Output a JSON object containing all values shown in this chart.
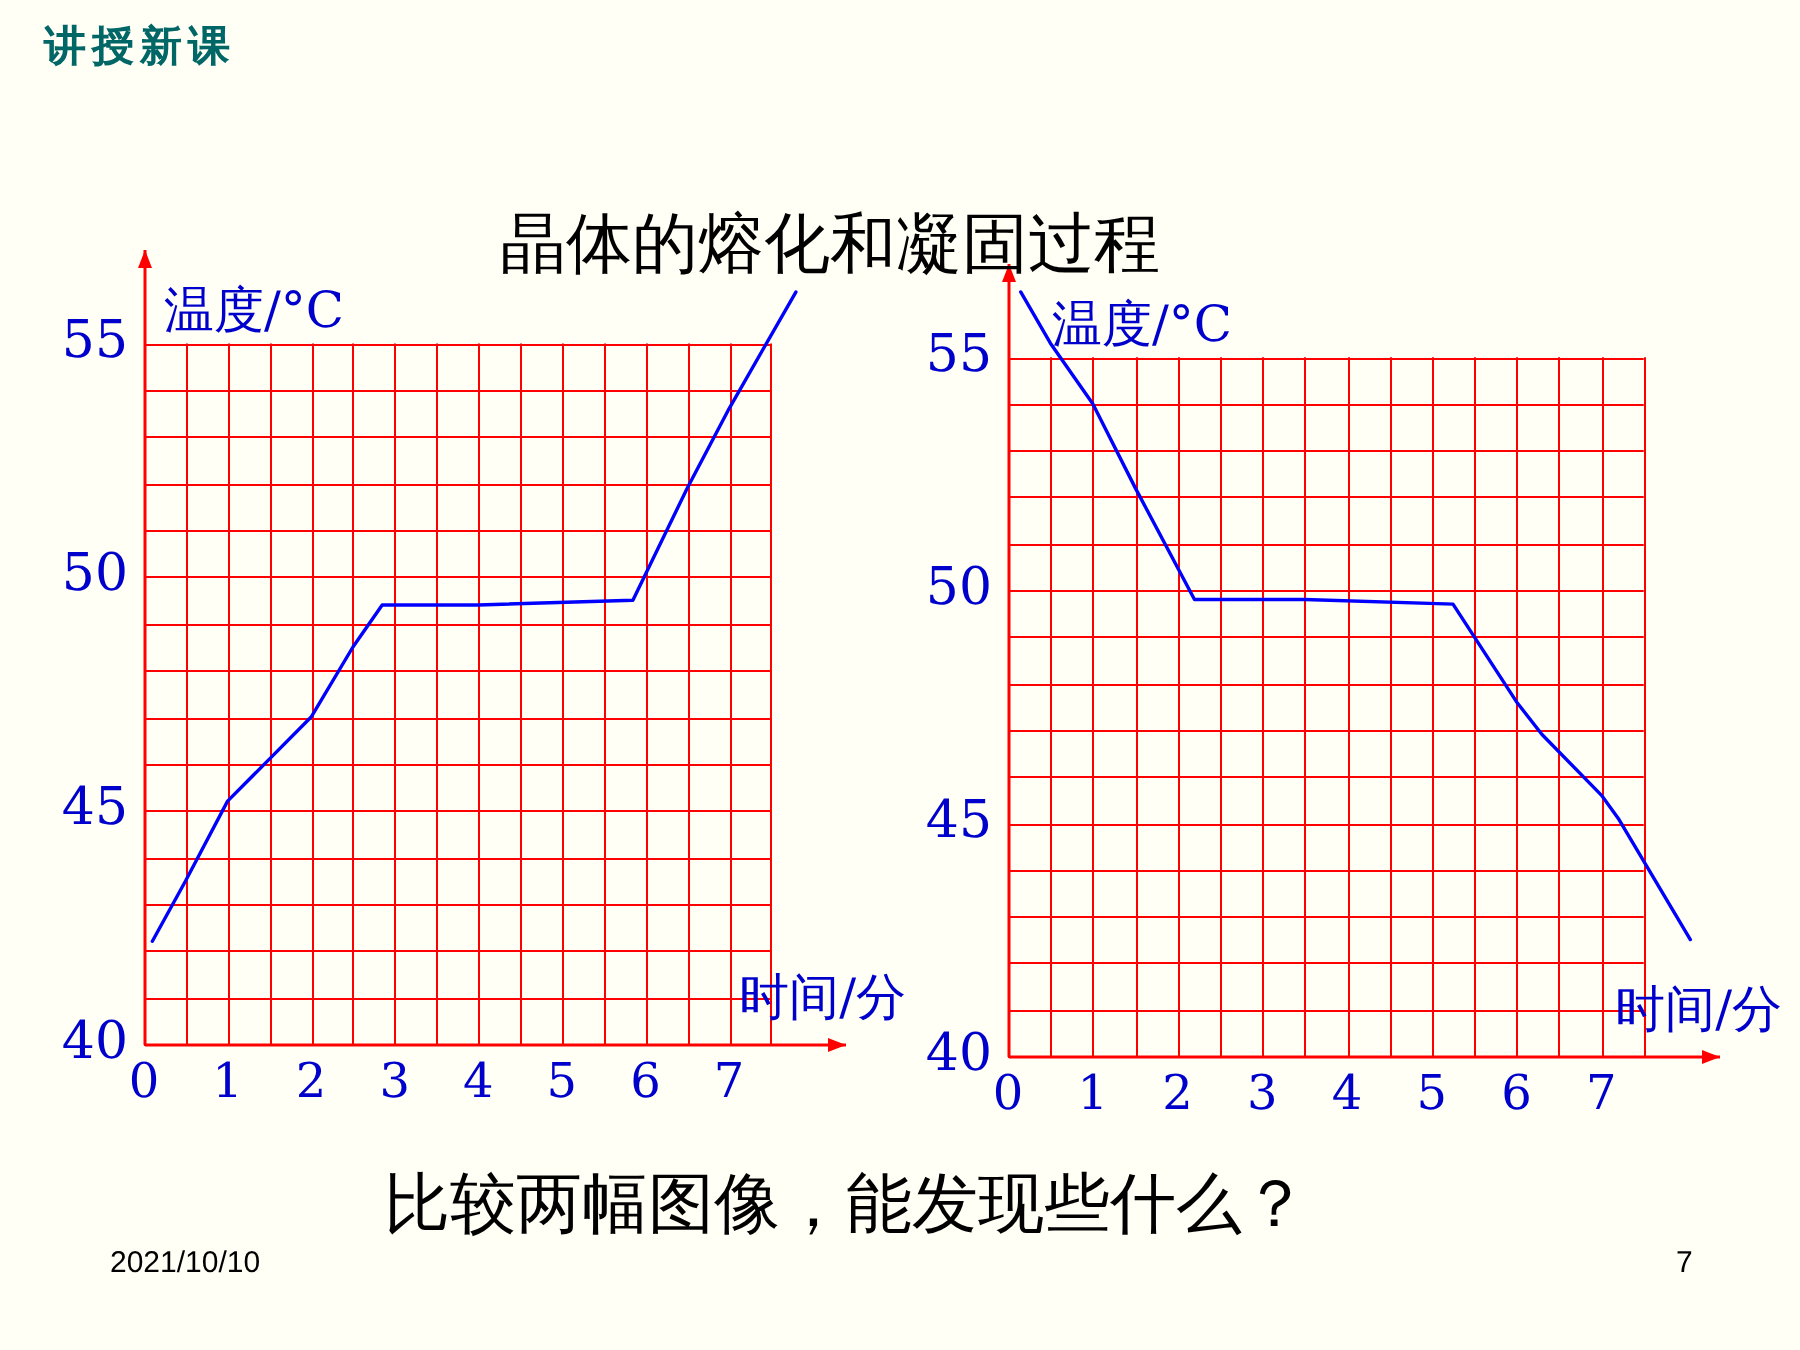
{
  "chart_data": [
    {
      "type": "line",
      "title": "晶体的熔化和凝固过程",
      "xlabel": "时间/分",
      "ylabel": "温度/°C",
      "x": [
        0.1,
        0.5,
        1.0,
        1.5,
        2.0,
        2.5,
        2.85,
        4.0,
        5.85,
        6.5,
        7.0,
        7.8
      ],
      "values": [
        42.2,
        43.5,
        45.2,
        46.1,
        47.0,
        48.5,
        49.4,
        49.4,
        49.5,
        51.9,
        53.6,
        56.1
      ],
      "color": "#0000ff",
      "xlim": [
        0,
        8.4
      ],
      "ylim": [
        40,
        57
      ],
      "xticks": [
        0,
        {
          "value": 0.5,
          "label": null
        },
        1,
        {
          "value": 1.5,
          "label": null
        },
        2,
        {
          "value": 2.5,
          "label": null
        },
        3,
        {
          "value": 3.5,
          "label": null
        },
        4,
        {
          "value": 4.5,
          "label": null
        },
        5,
        {
          "value": 5.5,
          "label": null
        },
        6,
        {
          "value": 6.5,
          "label": null
        },
        7,
        {
          "value": 7.5,
          "label": null
        }
      ],
      "yticks": [
        40,
        {
          "value": 41,
          "label": null
        },
        {
          "value": 42,
          "label": null
        },
        {
          "value": 43,
          "label": null
        },
        {
          "value": 44,
          "label": null
        },
        45,
        {
          "value": 46,
          "label": null
        },
        {
          "value": 47,
          "label": null
        },
        {
          "value": 48,
          "label": null
        },
        {
          "value": 49,
          "label": null
        },
        50,
        {
          "value": 51,
          "label": null
        },
        {
          "value": 52,
          "label": null
        },
        {
          "value": 53,
          "label": null
        },
        {
          "value": 54,
          "label": null
        },
        55
      ],
      "grid": true,
      "legend": false,
      "marker": "none",
      "annotations": [
        "讲授新课",
        "比较两幅图像，能发现些什么？",
        "2021/10/10",
        "7"
      ]
    },
    {
      "type": "line",
      "xlabel": "时间/分",
      "ylabel": "温度/°C",
      "x": [
        0.15,
        0.5,
        1.0,
        1.5,
        2.2,
        3.5,
        5.25,
        6.0,
        6.3,
        7.0,
        7.2,
        8.05
      ],
      "values": [
        56.4,
        55.3,
        54.0,
        52.2,
        49.8,
        49.8,
        49.7,
        47.6,
        46.9,
        45.6,
        45.1,
        42.5
      ],
      "color": "#0000ff",
      "xlim": [
        0,
        8.4
      ],
      "ylim": [
        40,
        57
      ],
      "xticks": [
        0,
        {
          "value": 0.5,
          "label": null
        },
        1,
        {
          "value": 1.5,
          "label": null
        },
        2,
        {
          "value": 2.5,
          "label": null
        },
        3,
        {
          "value": 3.5,
          "label": null
        },
        4,
        {
          "value": 4.5,
          "label": null
        },
        5,
        {
          "value": 5.5,
          "label": null
        },
        6,
        {
          "value": 6.5,
          "label": null
        },
        7,
        {
          "value": 7.5,
          "label": null
        }
      ],
      "yticks": [
        40,
        {
          "value": 41,
          "label": null
        },
        {
          "value": 42,
          "label": null
        },
        {
          "value": 43,
          "label": null
        },
        {
          "value": 44,
          "label": null
        },
        45,
        {
          "value": 46,
          "label": null
        },
        {
          "value": 47,
          "label": null
        },
        {
          "value": 48,
          "label": null
        },
        {
          "value": 49,
          "label": null
        },
        50,
        {
          "value": 51,
          "label": null
        },
        {
          "value": 52,
          "label": null
        },
        {
          "value": 53,
          "label": null
        },
        {
          "value": 54,
          "label": null
        },
        55
      ],
      "grid": true,
      "legend": false,
      "marker": "none"
    }
  ]
}
